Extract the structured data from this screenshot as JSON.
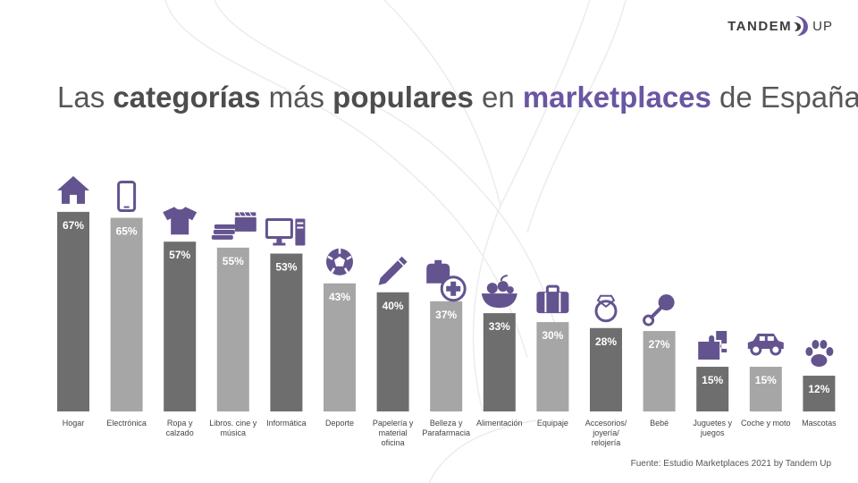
{
  "logo": {
    "word1": "TANDEM",
    "word2": "UP"
  },
  "title": {
    "p1": "Las ",
    "b1": "categorías",
    "p2": " más ",
    "b2": "populares",
    "p3": " en ",
    "b3": "marketplaces",
    "p4": " de España"
  },
  "source": "Fuente: Estudio Marketplaces 2021  by Tandem Up",
  "colors": {
    "bar_dark": "#6e6e6e",
    "bar_light": "#a6a6a6",
    "icon": "#63548f",
    "accent": "#6a56a3",
    "bar_label": "#ffffff"
  },
  "chart_data": {
    "type": "bar",
    "ylim": [
      0,
      100
    ],
    "categories": [
      {
        "label": [
          "Hogar"
        ],
        "value": 67,
        "label_text": "67%",
        "icon": "house-icon",
        "shade": "dark"
      },
      {
        "label": [
          "Electrónica"
        ],
        "value": 65,
        "label_text": "65%",
        "icon": "smartphone-icon",
        "shade": "light"
      },
      {
        "label": [
          "Ropa y",
          "calzado"
        ],
        "value": 57,
        "label_text": "57%",
        "icon": "tshirt-icon",
        "shade": "dark"
      },
      {
        "label": [
          "Libros. cine y",
          "música"
        ],
        "value": 55,
        "label_text": "55%",
        "icon": "books-clapperboard-icon",
        "shade": "light"
      },
      {
        "label": [
          "Informática"
        ],
        "value": 53,
        "label_text": "53%",
        "icon": "desktop-computer-icon",
        "shade": "dark"
      },
      {
        "label": [
          "Deporte"
        ],
        "value": 43,
        "label_text": "43%",
        "icon": "soccer-ball-icon",
        "shade": "light"
      },
      {
        "label": [
          "Papelería y",
          "material",
          "oficina"
        ],
        "value": 40,
        "label_text": "40%",
        "icon": "pencil-icon",
        "shade": "dark"
      },
      {
        "label": [
          "Belleza y",
          "Parafarmacia"
        ],
        "value": 37,
        "label_text": "37%",
        "icon": "perfume-medical-cross-icon",
        "shade": "light"
      },
      {
        "label": [
          "Alimentación"
        ],
        "value": 33,
        "label_text": "33%",
        "icon": "fruit-bowl-icon",
        "shade": "dark"
      },
      {
        "label": [
          "Equipaje"
        ],
        "value": 30,
        "label_text": "30%",
        "icon": "suitcase-icon",
        "shade": "light"
      },
      {
        "label": [
          "Accesorios/",
          "joyería/",
          "relojería"
        ],
        "value": 28,
        "label_text": "28%",
        "icon": "ring-icon",
        "shade": "dark"
      },
      {
        "label": [
          "Bebé"
        ],
        "value": 27,
        "label_text": "27%",
        "icon": "baby-rattle-icon",
        "shade": "light"
      },
      {
        "label": [
          "Juguetes y",
          "juegos"
        ],
        "value": 15,
        "label_text": "15%",
        "icon": "puzzle-icon",
        "shade": "dark"
      },
      {
        "label": [
          "Coche y moto"
        ],
        "value": 15,
        "label_text": "15%",
        "icon": "car-icon",
        "shade": "light"
      },
      {
        "label": [
          "Mascotas"
        ],
        "value": 12,
        "label_text": "12%",
        "icon": "paw-icon",
        "shade": "dark"
      }
    ]
  }
}
